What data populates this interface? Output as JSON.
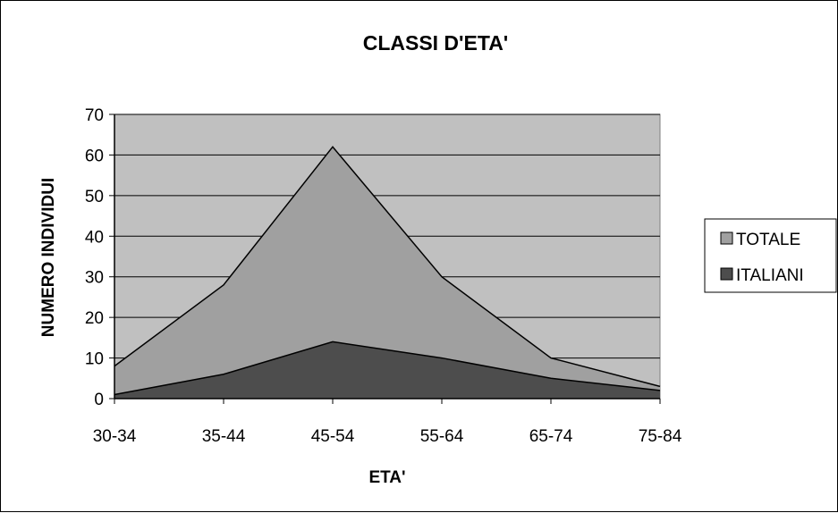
{
  "chart_data": {
    "type": "area",
    "title": "CLASSI D'ETA'",
    "xlabel": "ETA'",
    "ylabel": "NUMERO INDIVIDUI",
    "categories": [
      "30-34",
      "35-44",
      "45-54",
      "55-64",
      "65-74",
      "75-84"
    ],
    "ylim": [
      0,
      70
    ],
    "yticks": [
      0,
      10,
      20,
      30,
      40,
      50,
      60,
      70
    ],
    "grid": true,
    "legend_position": "right",
    "series": [
      {
        "name": "TOTALE",
        "values": [
          8,
          28,
          62,
          30,
          10,
          3
        ],
        "color": "#a0a0a0"
      },
      {
        "name": "ITALIANI",
        "values": [
          1,
          6,
          14,
          10,
          5,
          2
        ],
        "color": "#4d4d4d"
      }
    ],
    "plot_background": "#c0c0c0"
  }
}
